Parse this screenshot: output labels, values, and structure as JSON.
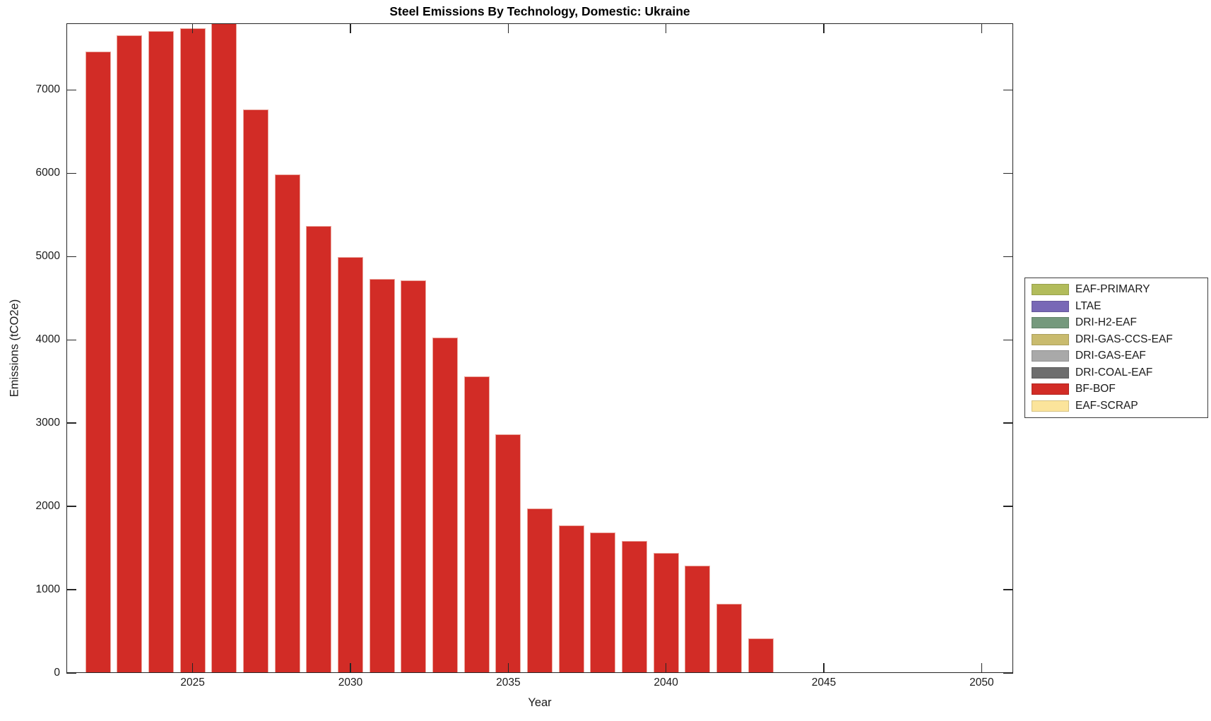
{
  "title": "Steel Emissions By Technology, Domestic: Ukraine",
  "chart_data": {
    "type": "bar",
    "title": "Steel Emissions By Technology, Domestic: Ukraine",
    "xlabel": "Year",
    "ylabel": "Emissions (tCO2e)",
    "xlim": [
      2021,
      2051
    ],
    "ylim": [
      0,
      7800
    ],
    "x_ticks": [
      2025,
      2030,
      2035,
      2040,
      2045,
      2050
    ],
    "y_ticks": [
      0,
      1000,
      2000,
      3000,
      4000,
      5000,
      6000,
      7000
    ],
    "grid": false,
    "legend_position": "outside-right",
    "series_name": "BF-BOF",
    "bar_color": "#d22c26",
    "bar_edge_color": "#eba79e",
    "x": [
      2022,
      2023,
      2024,
      2025,
      2026,
      2027,
      2028,
      2029,
      2030,
      2031,
      2032,
      2033,
      2034,
      2035,
      2036,
      2037,
      2038,
      2039,
      2040,
      2041,
      2042,
      2043
    ],
    "values": [
      7460,
      7655,
      7705,
      7745,
      7800,
      6765,
      5985,
      5370,
      4990,
      4735,
      4715,
      4025,
      3560,
      2870,
      1975,
      1770,
      1690,
      1585,
      1445,
      1290,
      835,
      415
    ],
    "legend": [
      {
        "label": "EAF-PRIMARY",
        "color": "#b2bc5b"
      },
      {
        "label": "LTAE",
        "color": "#7868b6"
      },
      {
        "label": "DRI-H2-EAF",
        "color": "#75997d"
      },
      {
        "label": "DRI-GAS-CCS-EAF",
        "color": "#c9bb6e"
      },
      {
        "label": "DRI-GAS-EAF",
        "color": "#a9a9a9"
      },
      {
        "label": "DRI-COAL-EAF",
        "color": "#6e6e6e"
      },
      {
        "label": "BF-BOF",
        "color": "#d22c26"
      },
      {
        "label": "EAF-SCRAP",
        "color": "#fbe49b"
      }
    ]
  }
}
